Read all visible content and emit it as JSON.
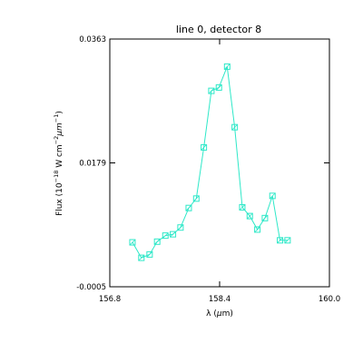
{
  "chart_data": {
    "type": "line",
    "title": "line 0, detector 8",
    "xlabel_parts": {
      "symbol": "λ",
      "open": " (",
      "mu": "μ",
      "unit": "m)"
    },
    "ylabel_parts": {
      "pre": "Flux (10",
      "exp1": "−18",
      "mid1": " W cm",
      "exp2": "−2",
      "mid2": "μm",
      "exp3": "−1",
      "post": ")"
    },
    "xlim": [
      156.8,
      160.0
    ],
    "ylim": [
      -0.0005,
      0.0363
    ],
    "x_ticks": [
      156.8,
      158.4,
      160.0
    ],
    "x_tick_labels": [
      "156.8",
      "158.4",
      "160.0"
    ],
    "y_ticks": [
      -0.0005,
      0.0179,
      0.0363
    ],
    "y_tick_labels": [
      "-0.0005",
      "0.0179",
      "0.0363"
    ],
    "grid": false,
    "marker": "square",
    "colors": {
      "series": "#2ee8c8",
      "axes": "#000000",
      "background": "#ffffff"
    },
    "series": [
      {
        "x": [
          157.13,
          157.26,
          157.38,
          157.49,
          157.61,
          157.72,
          157.83,
          157.95,
          158.06,
          158.17,
          158.28,
          158.39,
          158.51,
          158.62,
          158.73,
          158.84,
          158.95,
          159.06,
          159.17,
          159.28,
          159.39
        ],
        "y": [
          0.0061,
          0.0038,
          0.0043,
          0.0062,
          0.0071,
          0.0073,
          0.0083,
          0.0112,
          0.0126,
          0.0202,
          0.0286,
          0.0291,
          0.0322,
          0.0232,
          0.0113,
          0.01,
          0.008,
          0.0097,
          0.013,
          0.0064,
          0.0064
        ]
      }
    ]
  }
}
